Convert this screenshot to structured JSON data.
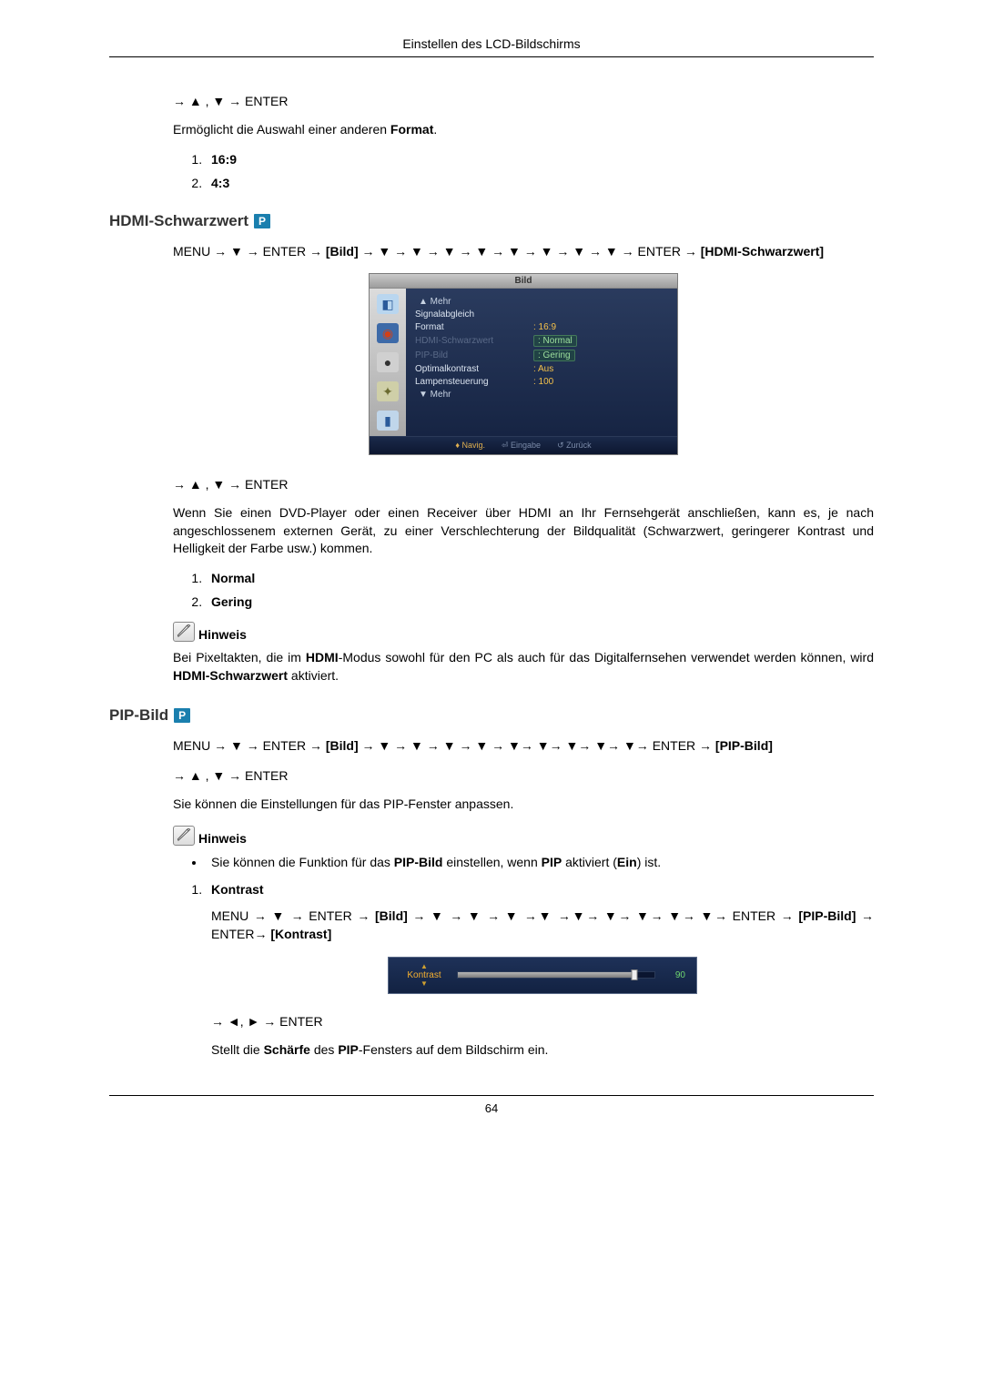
{
  "page": {
    "header": "Einstellen des LCD-Bildschirms",
    "number": "64"
  },
  "format_block": {
    "nav": "→ ▲ , ▼ → ENTER",
    "desc_pre": "Ermöglicht die Auswahl einer anderen ",
    "desc_bold": "Format",
    "desc_post": ".",
    "opts": [
      "16:9",
      "4:3"
    ]
  },
  "hdmi_section": {
    "title": "HDMI-Schwarzwert",
    "badge": "P",
    "menu_path_pre": "MENU → ▼ → ENTER → ",
    "menu_path_b1": "[Bild]",
    "menu_path_mid": " → ▼ → ▼ → ▼ → ▼ → ▼ → ▼ → ▼ → ▼ → ENTER → ",
    "menu_path_b2": "[HDMI-Schwarzwert]",
    "nav2": "→ ▲ , ▼ → ENTER",
    "para": "Wenn Sie einen DVD-Player oder einen Receiver über HDMI an Ihr Fernsehgerät anschließen, kann es, je nach angeschlossenem externen Gerät, zu einer Verschlechterung der Bildqualität (Schwarzwert, geringerer Kontrast und Helligkeit der Farbe usw.) kommen.",
    "opts": [
      "Normal",
      "Gering"
    ],
    "note_label": "Hinweis",
    "note_text_parts": [
      {
        "t": "Bei Pixeltakten, die im "
      },
      {
        "t": "HDMI",
        "b": true
      },
      {
        "t": "-Modus sowohl für den PC als auch für das Digitalfernsehen verwendet werden können, wird "
      },
      {
        "t": "HDMI-Schwarzwert",
        "b": true
      },
      {
        "t": " aktiviert."
      }
    ]
  },
  "osd": {
    "title": "Bild",
    "side_icons": [
      {
        "bg": "#b9d6ef",
        "glyph": "◧",
        "color": "#2a5a9a"
      },
      {
        "bg": "#3d6aa8",
        "glyph": "◉",
        "color": "#d04018"
      },
      {
        "bg": "#d0d0d0",
        "glyph": "●",
        "color": "#333"
      },
      {
        "bg": "#cfcfa8",
        "glyph": "✦",
        "color": "#6a6a30"
      },
      {
        "bg": "#c0d6ea",
        "glyph": "▮",
        "color": "#2a5a9a"
      }
    ],
    "rows": [
      {
        "more": "▲ Mehr"
      },
      {
        "label": "Signalabgleich",
        "value": ""
      },
      {
        "label": "Format",
        "value": "16:9"
      },
      {
        "label": "HDMI-Schwarzwert",
        "value": "Normal",
        "selected": true,
        "dim": true
      },
      {
        "label": "PIP-Bild",
        "value": "Gering",
        "selected": true,
        "dim_label": true
      },
      {
        "label": "Optimalkontrast",
        "value": "Aus"
      },
      {
        "label": "Lampensteuerung",
        "value": "100"
      },
      {
        "more": "▼ Mehr"
      }
    ],
    "footer": {
      "nav": "♦ Navig.",
      "enter": "⏎ Eingabe",
      "back": "↺ Zurück"
    }
  },
  "pip_section": {
    "title": "PIP-Bild",
    "badge": "P",
    "menu_path_pre": "MENU → ▼ → ENTER → ",
    "menu_path_b1": "[Bild]",
    "menu_path_mid": " → ▼ → ▼ → ▼ → ▼ → ▼→ ▼→ ▼→ ▼→ ▼→ ENTER → ",
    "menu_path_b2": "[PIP-Bild]",
    "nav2": "→ ▲ , ▼ → ENTER",
    "para1": "Sie können die Einstellungen für das PIP-Fenster anpassen.",
    "note_label": "Hinweis",
    "bullet_parts": [
      {
        "t": "Sie können die Funktion für das "
      },
      {
        "t": "PIP-Bild",
        "b": true
      },
      {
        "t": " einstellen, wenn "
      },
      {
        "t": "PIP",
        "b": true
      },
      {
        "t": " aktiviert ("
      },
      {
        "t": "Ein",
        "b": true
      },
      {
        "t": ") ist."
      }
    ],
    "ol_item1": "Kontrast",
    "kontrast_path_pre": "MENU → ▼ → ENTER → ",
    "kontrast_path_b1": "[Bild]",
    "kontrast_path_mid": " → ▼ → ▼ → ▼ →▼ →▼→ ▼→ ▼→ ▼→ ▼→ ENTER → ",
    "kontrast_path_b2": "[PIP-Bild]",
    "kontrast_path_mid2": " → ENTER→ ",
    "kontrast_path_b3": "[Kontrast]",
    "nav3": "→ ◄, ► → ENTER",
    "para2_parts": [
      {
        "t": "Stellt die "
      },
      {
        "t": "Schärfe",
        "b": true
      },
      {
        "t": " des "
      },
      {
        "t": "PIP",
        "b": true
      },
      {
        "t": "-Fensters auf dem Bildschirm ein."
      }
    ]
  },
  "slider": {
    "label": "Kontrast",
    "value": 90,
    "max": 100,
    "fill_pct": 90,
    "track_bg": "#0a1530",
    "fill_color": "#a8a8a8",
    "value_color": "#6fd66f",
    "label_color": "#f5b030"
  }
}
